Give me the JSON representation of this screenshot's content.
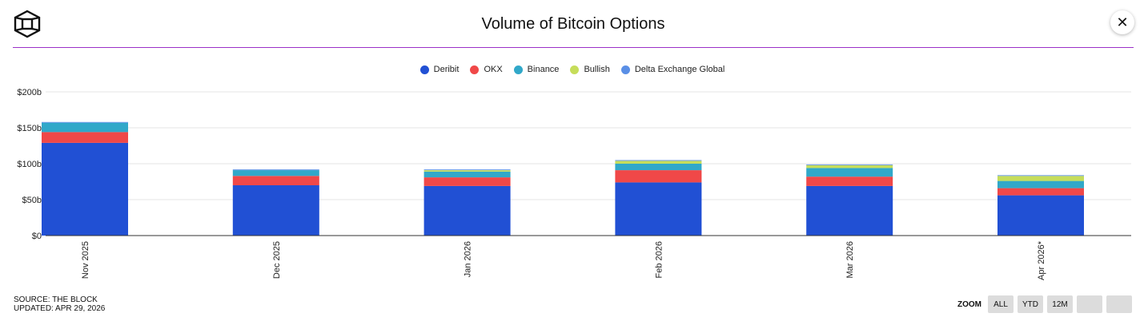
{
  "header": {
    "title": "Volume of Bitcoin Options",
    "close_label": "✕"
  },
  "footer": {
    "source": "SOURCE: THE BLOCK",
    "updated": "UPDATED: APR 29, 2026"
  },
  "zoom": {
    "label": "ZOOM",
    "buttons": [
      "ALL",
      "YTD",
      "12M",
      "",
      ""
    ]
  },
  "chart_data": {
    "type": "bar",
    "stacked": true,
    "title": "Volume of Bitcoin Options",
    "categories": [
      "Nov 2025",
      "Dec 2025",
      "Jan 2026",
      "Feb 2026",
      "Mar 2026",
      "Apr 2026*"
    ],
    "ylim": [
      0,
      200
    ],
    "yticks": [
      "$0",
      "$50b",
      "$100b",
      "$150b",
      "$200b"
    ],
    "ytick_values": [
      0,
      50,
      100,
      150,
      200
    ],
    "grid": true,
    "legend_position": "top-center",
    "series": [
      {
        "name": "Deribit",
        "color": "#2150d4",
        "values": [
          129,
          70,
          69,
          74,
          69,
          56
        ]
      },
      {
        "name": "OKX",
        "color": "#f04848",
        "values": [
          15,
          13,
          12,
          17,
          13,
          10
        ]
      },
      {
        "name": "Binance",
        "color": "#31a8c9",
        "values": [
          13,
          8,
          8,
          9,
          12,
          10
        ]
      },
      {
        "name": "Bullish",
        "color": "#c6dd5a",
        "values": [
          0,
          0,
          2,
          4,
          4,
          7
        ]
      },
      {
        "name": "Delta Exchange Global",
        "color": "#5a8fe6",
        "values": [
          1,
          1,
          1,
          1,
          1,
          1
        ]
      }
    ]
  }
}
